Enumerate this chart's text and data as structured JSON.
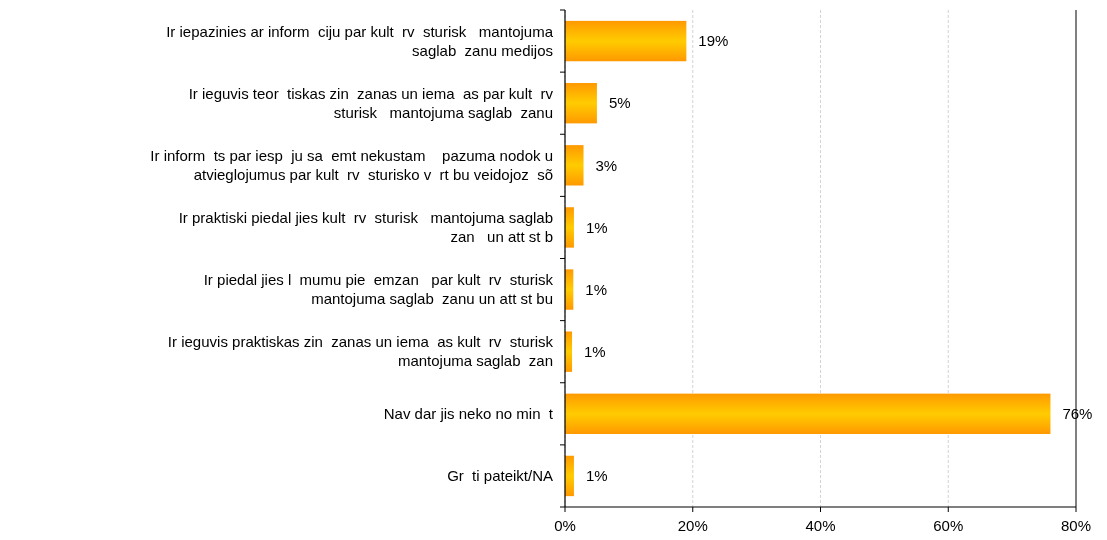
{
  "chart_data": {
    "type": "bar",
    "orientation": "horizontal",
    "categories": [
      "Ir iepazinies ar inform  ciju par kult  rv  sturisk   mantojuma saglab  zanu medijos",
      "Ir ieguvis teor  tiskas zin  zanas un iema  as par kult  rv  sturisk   mantojuma saglab  zanu",
      "Ir inform  ts par iesp  ju sa  emt nekustam    pazuma nodok u atvieglojumus par kult  rv  sturisko v  rt bu veidojoz  sõ",
      "Ir praktiski piedal jies kult  rv  sturisk   mantojuma saglab  zan   un att st b",
      "Ir piedal jies l  mumu pie  emzan   par kult  rv  sturisk mantojuma saglab  zanu un att st bu",
      "Ir ieguvis praktiskas zin  zanas un iema  as kult  rv  sturisk mantojuma saglab  zan",
      "Nav dar jis neko no min  t",
      "Gr  ti pateikt/NA"
    ],
    "values": [
      19,
      5,
      2.9,
      1.4,
      1.3,
      1.1,
      76,
      1.4
    ],
    "value_labels": [
      "19%",
      "5%",
      "3%",
      "1%",
      "1%",
      "1%",
      "76%",
      "1%"
    ],
    "color": "#ff9900",
    "xlim": [
      0,
      80
    ],
    "xticks": [
      {
        "value": 0,
        "label": "0%"
      },
      {
        "value": 20,
        "label": "20%"
      },
      {
        "value": 40,
        "label": "40%"
      },
      {
        "value": 60,
        "label": "60%"
      },
      {
        "value": 80,
        "label": "80%"
      }
    ],
    "grid": "x"
  }
}
